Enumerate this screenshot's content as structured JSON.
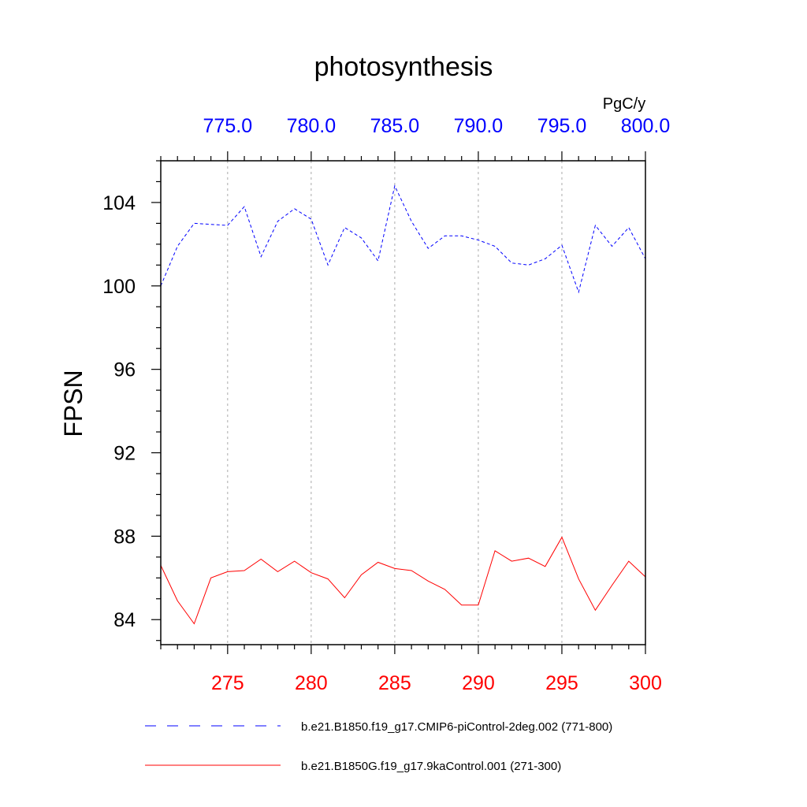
{
  "chart_data": {
    "type": "line",
    "title": "photosynthesis",
    "ylabel": "FPSN",
    "units": "PgC/y",
    "ylim": [
      82.8,
      106.0
    ],
    "yticks": [
      84,
      88,
      92,
      96,
      100,
      104
    ],
    "ytick_labels": [
      "84",
      "88",
      "92",
      "96",
      "100",
      "104"
    ],
    "bottom_axis": {
      "range": [
        271,
        300
      ],
      "ticks": [
        275,
        280,
        285,
        290,
        295,
        300
      ],
      "tick_labels": [
        "275",
        "280",
        "285",
        "290",
        "295",
        "300"
      ],
      "color": "#ff0000"
    },
    "top_axis": {
      "range": [
        771,
        800
      ],
      "ticks": [
        775,
        780,
        785,
        790,
        795,
        800
      ],
      "tick_labels": [
        "775.0",
        "780.0",
        "785.0",
        "790.0",
        "795.0",
        "800.0"
      ],
      "color": "#0000ff"
    },
    "grid": "vertical-dashed",
    "series": [
      {
        "name": "b.e21.B1850.f19_g17.CMIP6-piControl-2deg.002 (771-800)",
        "axis": "top",
        "color": "#0000ff",
        "dash": "dashed",
        "x": [
          771,
          772,
          773,
          774,
          775,
          776,
          777,
          778,
          779,
          780,
          781,
          782,
          783,
          784,
          785,
          786,
          787,
          788,
          789,
          790,
          791,
          792,
          793,
          794,
          795,
          796,
          797,
          798,
          799,
          800
        ],
        "values": [
          100.0,
          101.9,
          103.0,
          102.95,
          102.9,
          103.8,
          101.4,
          103.1,
          103.7,
          103.2,
          101.0,
          102.8,
          102.3,
          101.2,
          104.8,
          103.1,
          101.8,
          102.4,
          102.4,
          102.2,
          101.9,
          101.1,
          101.0,
          101.3,
          101.95,
          99.7,
          102.9,
          101.9,
          102.8,
          101.3
        ]
      },
      {
        "name": "b.e21.B1850G.f19_g17.9kaControl.001 (271-300)",
        "axis": "bottom",
        "color": "#ff0000",
        "dash": "solid",
        "x": [
          271,
          272,
          273,
          274,
          275,
          276,
          277,
          278,
          279,
          280,
          281,
          282,
          283,
          284,
          285,
          286,
          287,
          288,
          289,
          290,
          291,
          292,
          293,
          294,
          295,
          296,
          297,
          298,
          299,
          300
        ],
        "values": [
          86.6,
          84.9,
          83.8,
          86.0,
          86.3,
          86.35,
          86.9,
          86.3,
          86.8,
          86.25,
          85.95,
          85.05,
          86.15,
          86.75,
          86.45,
          86.35,
          85.85,
          85.45,
          84.7,
          84.7,
          87.3,
          86.8,
          86.95,
          86.55,
          87.95,
          85.95,
          84.45,
          85.65,
          86.8,
          86.05
        ]
      }
    ]
  }
}
